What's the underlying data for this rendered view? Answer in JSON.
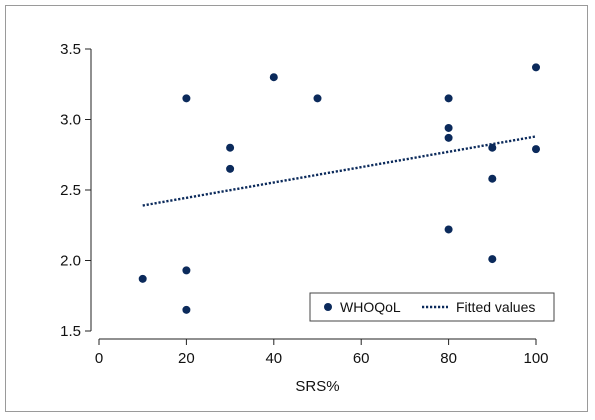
{
  "chart_data": {
    "type": "scatter",
    "xlabel": "SRS%",
    "ylabel": "",
    "xlim": [
      0,
      100
    ],
    "ylim": [
      1.5,
      3.5
    ],
    "x_ticks": [
      "0",
      "20",
      "40",
      "60",
      "80",
      "100"
    ],
    "y_ticks": [
      "1.5",
      "2.0",
      "2.5",
      "3.0",
      "3.5"
    ],
    "grid": false,
    "legend_position": "bottom-right",
    "colors": {
      "points": "#0b2a5b",
      "line": "#0b2a5b",
      "axis": "#222222"
    },
    "series": [
      {
        "name": "WHOQoL",
        "kind": "scatter",
        "points": [
          [
            10,
            1.87
          ],
          [
            20,
            3.15
          ],
          [
            20,
            1.93
          ],
          [
            20,
            1.65
          ],
          [
            30,
            2.8
          ],
          [
            30,
            2.65
          ],
          [
            40,
            3.3
          ],
          [
            50,
            3.15
          ],
          [
            80,
            3.15
          ],
          [
            80,
            2.94
          ],
          [
            80,
            2.87
          ],
          [
            80,
            2.22
          ],
          [
            90,
            2.8
          ],
          [
            90,
            2.58
          ],
          [
            90,
            2.01
          ],
          [
            100,
            3.37
          ],
          [
            100,
            2.79
          ]
        ]
      },
      {
        "name": "Fitted values",
        "kind": "line",
        "points": [
          [
            10,
            2.39
          ],
          [
            100,
            2.88
          ]
        ]
      }
    ]
  }
}
